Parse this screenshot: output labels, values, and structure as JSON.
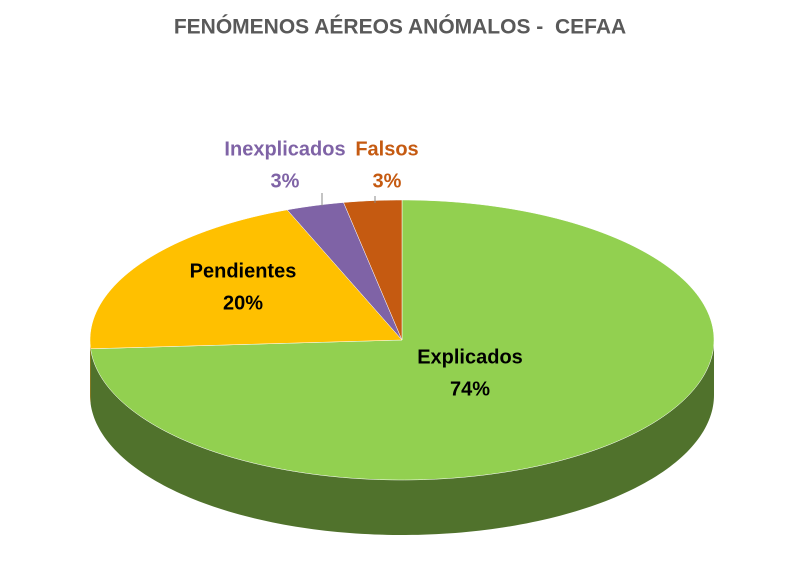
{
  "chart_data": {
    "type": "pie",
    "title": "FENÓMENOS AÉREOS ANÓMALOS -  CEFAA",
    "categories": [
      "Explicados",
      "Pendientes",
      "Inexplicados",
      "Falsos"
    ],
    "values": [
      74,
      20,
      3,
      3
    ],
    "value_labels": [
      "74%",
      "20%",
      "3%",
      "3%"
    ],
    "colors": [
      "#92d050",
      "#ffc000",
      "#7f63a6",
      "#c55a11"
    ]
  }
}
